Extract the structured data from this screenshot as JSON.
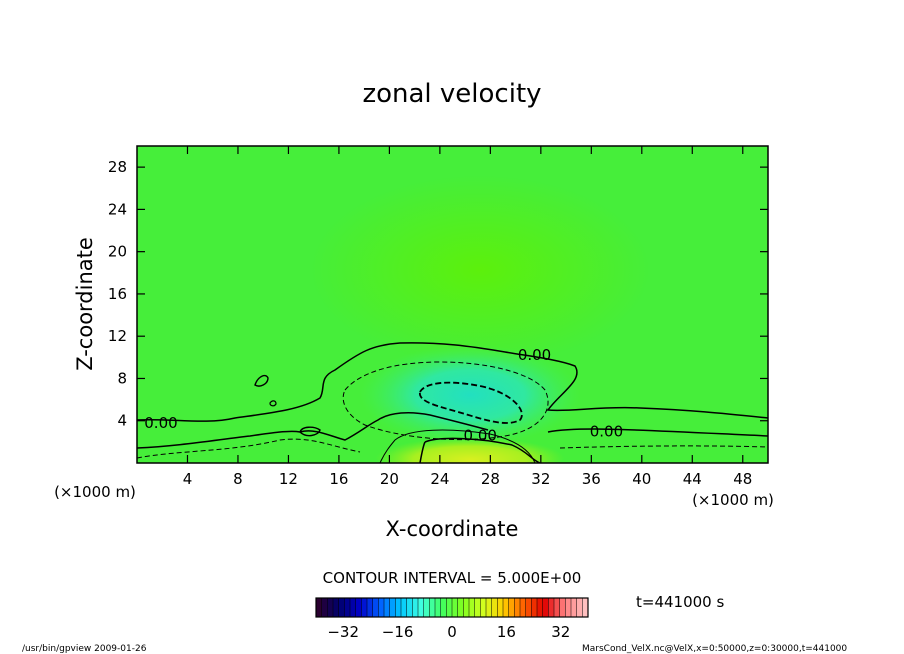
{
  "chart_data": {
    "type": "heatmap",
    "title": "zonal velocity",
    "xlabel": "X-coordinate",
    "ylabel": "Z-coordinate",
    "x_unit_label": "(×1000 m)",
    "y_unit_label": "(×1000 m)",
    "xlim": [
      0,
      50
    ],
    "ylim": [
      0,
      30
    ],
    "x_ticks": [
      4,
      8,
      12,
      16,
      20,
      24,
      28,
      32,
      36,
      40,
      44,
      48
    ],
    "y_ticks": [
      4,
      8,
      12,
      16,
      20,
      24,
      28
    ],
    "contour_labels": [
      {
        "text": "0.00",
        "x": 31.5,
        "z": 10.2
      },
      {
        "text": "0.00",
        "x": 1.9,
        "z": 3.8
      },
      {
        "text": "0.00",
        "x": 27.2,
        "z": 2.6
      },
      {
        "text": "0.00",
        "x": 37.2,
        "z": 3.0
      }
    ],
    "contour_interval_label": "CONTOUR INTERVAL = 5.000E+00",
    "colorbar": {
      "range": [
        -40,
        40
      ],
      "ticks": [
        -32,
        -16,
        0,
        16,
        32
      ],
      "colors": [
        "#2a0030",
        "#00006e",
        "#0000c8",
        "#0060ff",
        "#00c8ff",
        "#40ffe0",
        "#40ff60",
        "#80ff20",
        "#d0ff20",
        "#ffd000",
        "#ff6000",
        "#e00000",
        "#ff8080",
        "#ffc0c0"
      ]
    },
    "time_label": "t=441000  s"
  },
  "footer": {
    "left": "/usr/bin/gpview   2009-01-26",
    "right": "MarsCond_VelX.nc@VelX,x=0:50000,z=0:30000,t=441000"
  }
}
